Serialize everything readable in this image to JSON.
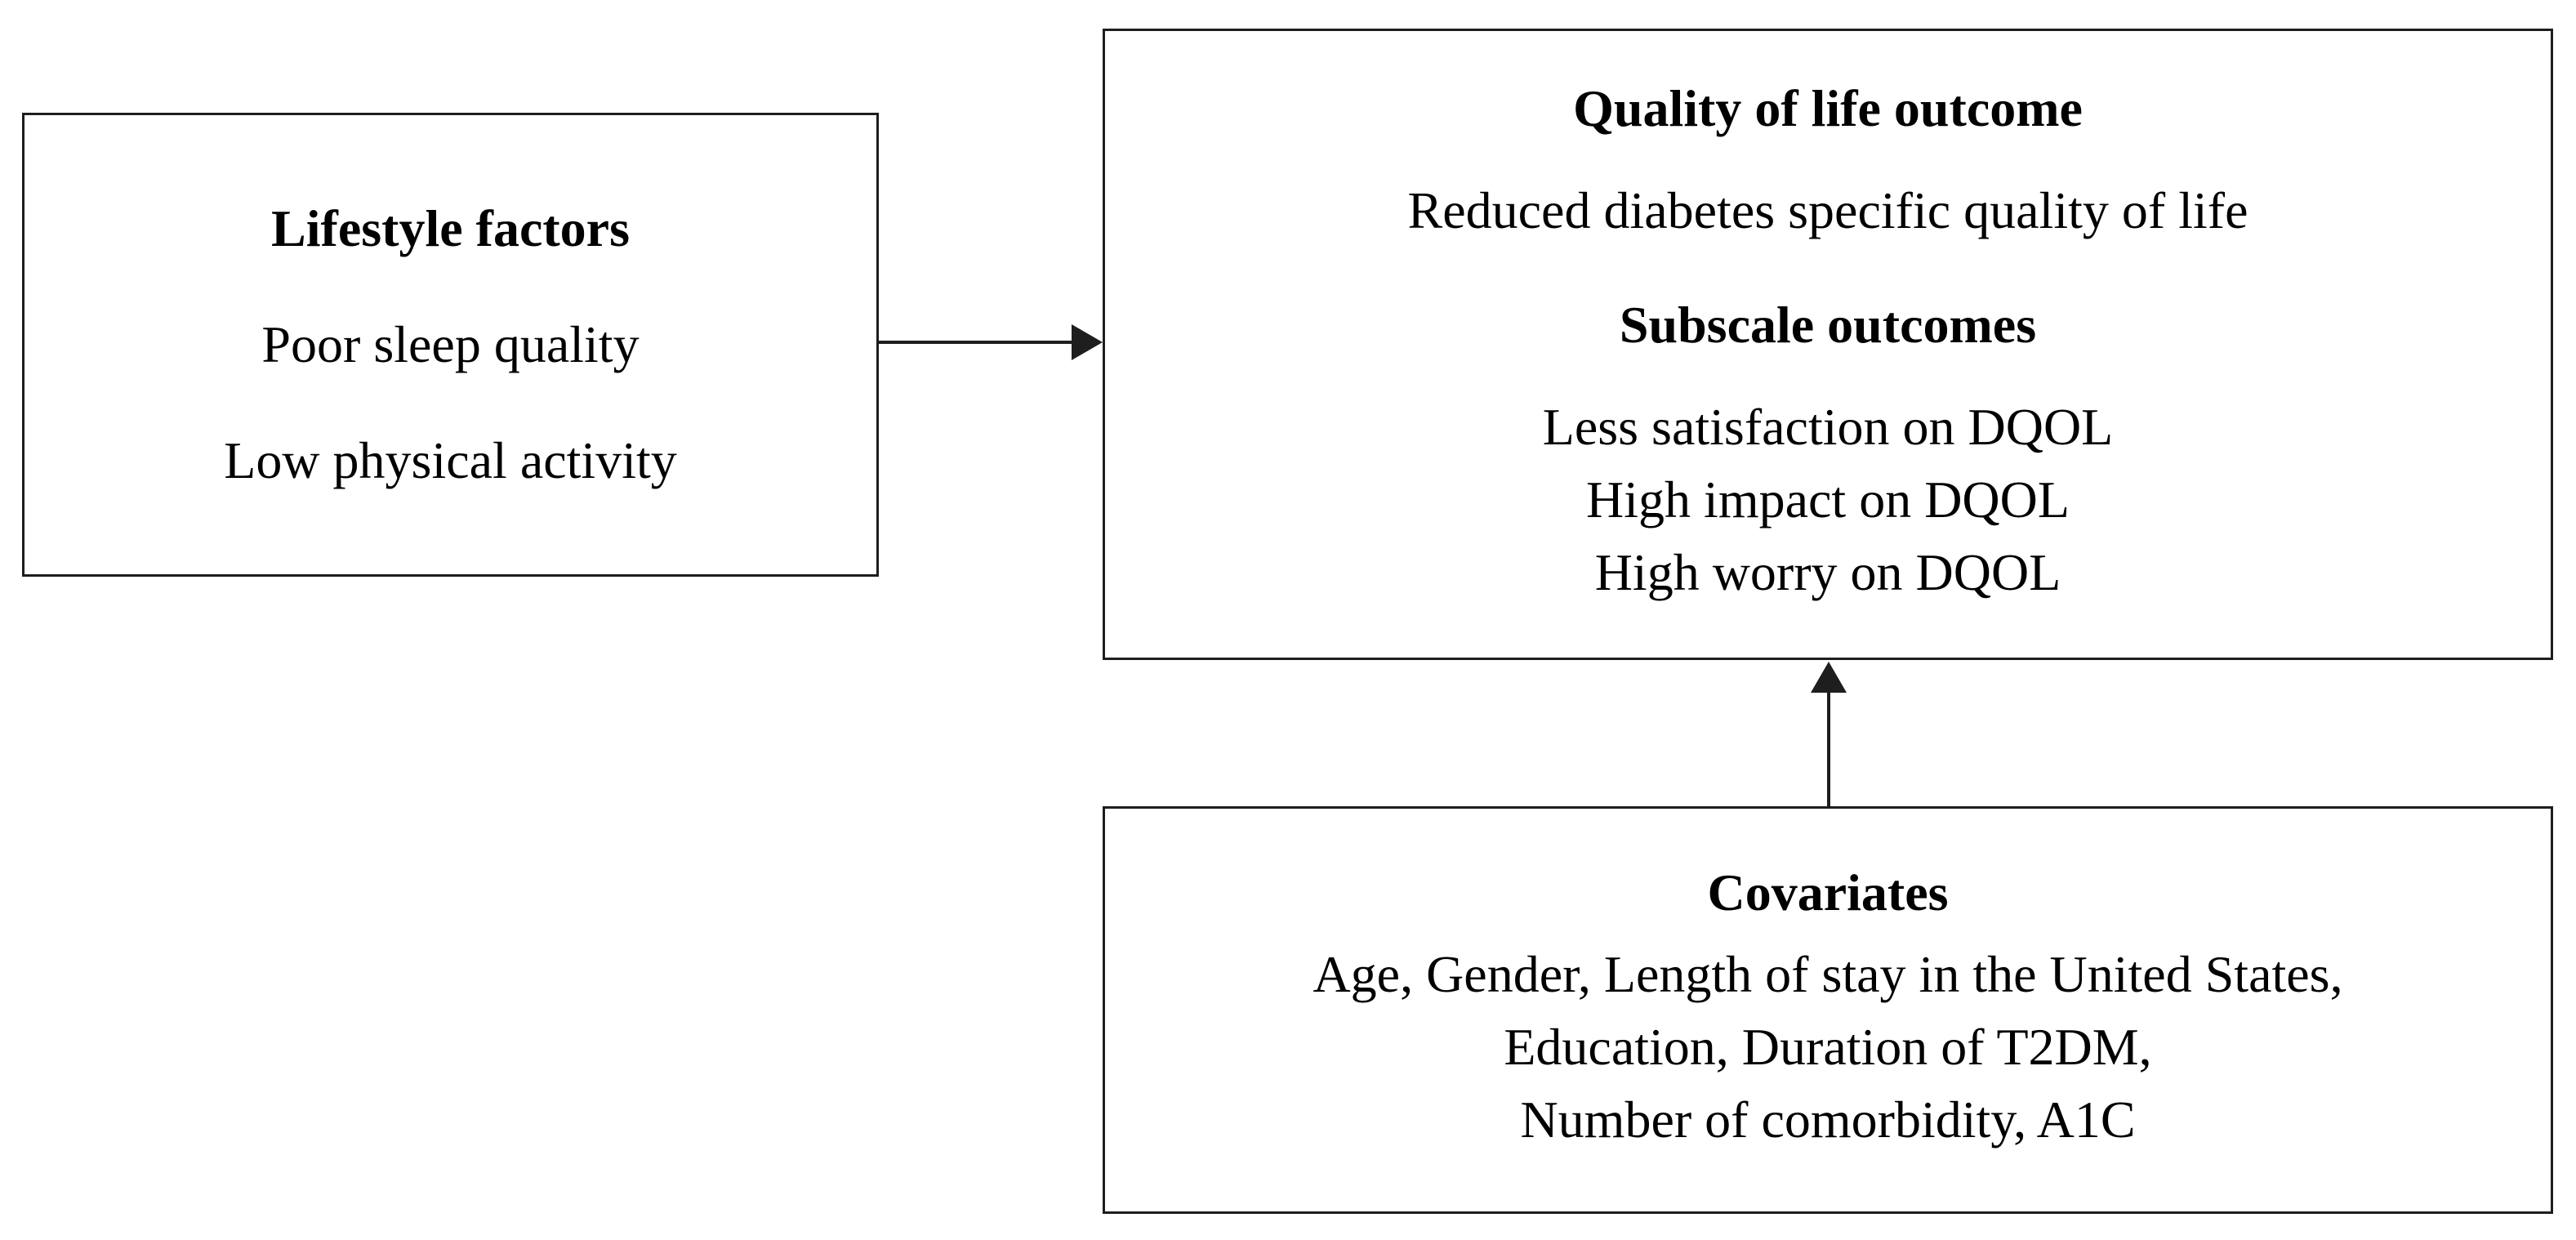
{
  "figure": {
    "type": "conceptual-model-diagram",
    "background_color": "#ffffff",
    "border_color": "#1e1e1e",
    "text_color": "#000000",
    "boxes": {
      "lifestyle": {
        "title": "Lifestyle factors",
        "items": [
          "Poor sleep quality",
          "Low physical activity"
        ]
      },
      "quality_of_life": {
        "title": "Quality of life outcome",
        "description": "Reduced diabetes specific quality of life",
        "subtitle": "Subscale outcomes",
        "items": [
          "Less satisfaction on DQOL",
          "High impact on DQOL",
          "High worry on DQOL"
        ]
      },
      "covariates": {
        "title": "Covariates",
        "lines": [
          "Age, Gender, Length of stay in the United States,",
          "Education, Duration of T2DM,",
          "Number of comorbidity, A1C"
        ]
      }
    },
    "arrows": [
      {
        "name": "lifestyle-to-quality-of-life",
        "direction": "right"
      },
      {
        "name": "covariates-to-quality-of-life",
        "direction": "up"
      }
    ]
  }
}
